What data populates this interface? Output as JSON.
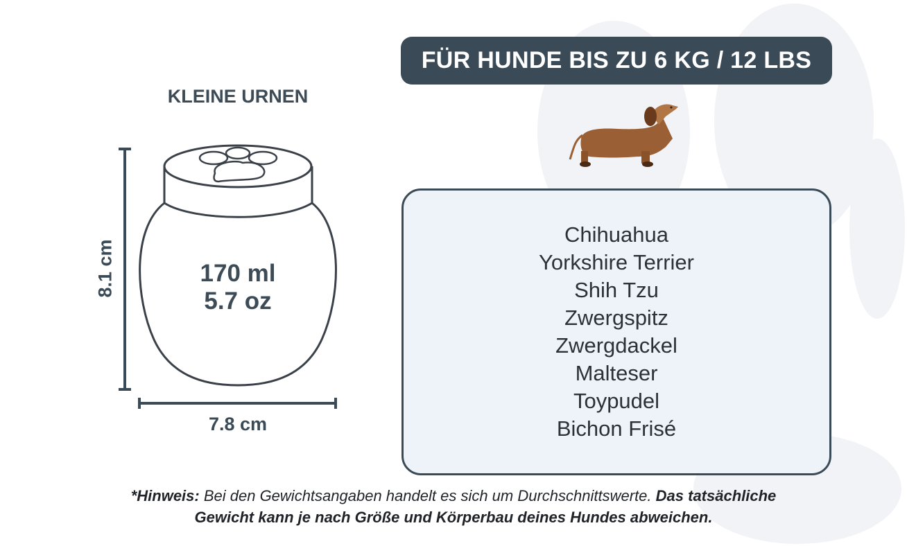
{
  "header": {
    "title": "FÜR HUNDE BIS ZU 6 KG / 12 LBS"
  },
  "urn": {
    "subtitle": "KLEINE URNEN",
    "volume_ml": "170 ml",
    "volume_oz": "5.7 oz",
    "height": "8.1 cm",
    "width": "7.8 cm"
  },
  "breeds": [
    "Chihuahua",
    "Yorkshire Terrier",
    "Shih Tzu",
    "Zwergspitz",
    "Zwergdackel",
    "Malteser",
    "Toypudel",
    "Bichon Frisé"
  ],
  "note": {
    "label": "*Hinweis:",
    "text": " Bei den Gewichtsangaben handelt es sich um Durchschnittswerte. ",
    "bold_text": "Das tatsächliche Gewicht kann je nach Größe und Körperbau deines Hundes abweichen."
  },
  "colors": {
    "primary": "#3a4a56",
    "box_fill": "#eef2f9",
    "dog": "#9a5f35"
  },
  "icons": [
    "paw-print-background",
    "dachshund-illustration",
    "urn-outline"
  ]
}
